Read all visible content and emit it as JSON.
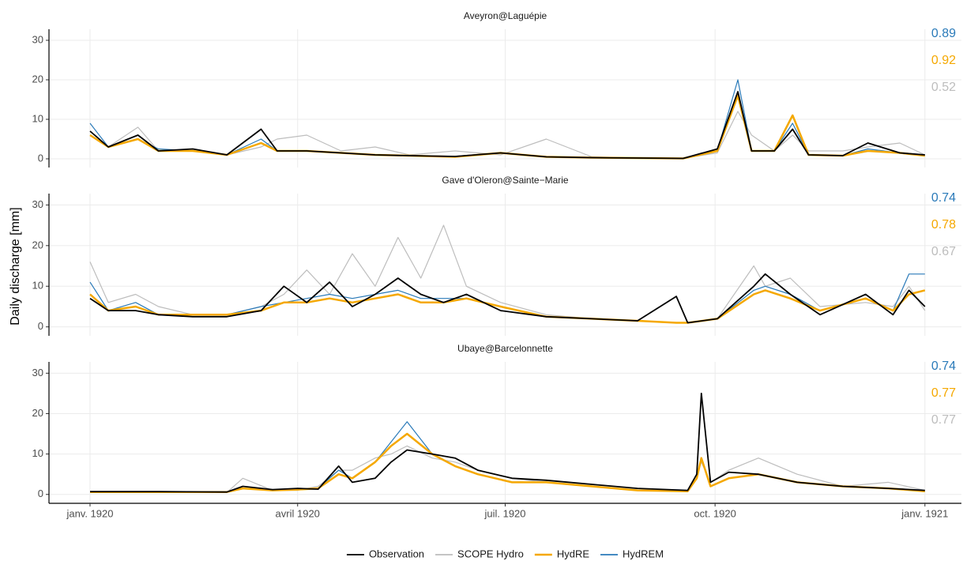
{
  "chart_data": {
    "type": "line",
    "ylabel": "Daily discharge [mm]",
    "ylim": [
      -2.2,
      32.8
    ],
    "yticks": [
      0,
      10,
      20,
      30
    ],
    "xlim": [
      -18,
      382
    ],
    "xticks": [
      {
        "value": 0,
        "label": "janv. 1920"
      },
      {
        "value": 91,
        "label": "avril 1920"
      },
      {
        "value": 182,
        "label": "juil. 1920"
      },
      {
        "value": 274,
        "label": "oct. 1920"
      },
      {
        "value": 366,
        "label": "janv. 1921"
      }
    ],
    "grid": true,
    "panels": [
      {
        "title": "Aveyron@Laguépie",
        "x": [
          0,
          8,
          21,
          30,
          45,
          60,
          75,
          82,
          95,
          110,
          125,
          140,
          160,
          180,
          200,
          220,
          240,
          260,
          275,
          284,
          290,
          300,
          308,
          315,
          330,
          341,
          355,
          366
        ]
      },
      {
        "title": "Gave d'Oleron@Sainte−Marie",
        "x": [
          0,
          8,
          20,
          30,
          45,
          60,
          75,
          85,
          95,
          105,
          115,
          125,
          135,
          145,
          155,
          165,
          180,
          200,
          220,
          240,
          257,
          262,
          275,
          291,
          296,
          307,
          320,
          340,
          352,
          359,
          366
        ]
      },
      {
        "title": "Ubaye@Barcelonnette",
        "x": [
          0,
          30,
          60,
          67,
          80,
          91,
          100,
          109,
          115,
          125,
          132,
          139,
          150,
          160,
          170,
          185,
          200,
          220,
          240,
          262,
          266,
          268,
          272,
          280,
          293,
          310,
          330,
          350,
          366
        ]
      }
    ],
    "series": [
      {
        "name": "Observation",
        "color": "#000000",
        "values": [
          [
            7,
            3,
            6,
            2,
            2.5,
            1,
            7.5,
            2,
            2,
            1.5,
            1,
            0.8,
            0.6,
            1.5,
            0.5,
            0.3,
            0.2,
            0.1,
            2.5,
            17,
            2,
            2,
            7.5,
            1,
            0.8,
            4,
            1.5,
            1
          ],
          [
            7,
            4,
            4,
            3,
            2.5,
            2.5,
            4,
            10,
            6,
            11,
            5,
            8,
            12,
            8,
            6,
            8,
            4,
            2.5,
            2,
            1.5,
            7.5,
            1,
            2,
            10,
            13,
            8,
            3,
            8,
            3,
            9,
            5
          ],
          [
            0.7,
            0.7,
            0.6,
            2,
            1.2,
            1.5,
            1.3,
            7,
            3,
            4,
            8,
            11,
            10,
            9,
            6,
            4,
            3.5,
            2.5,
            1.5,
            1,
            5,
            25,
            3,
            5.5,
            5,
            3,
            2,
            1.5,
            1
          ]
        ]
      },
      {
        "name": "SCOPE Hydro",
        "color": "#bdbdbd",
        "scores": [
          0.52,
          0.67,
          0.77
        ],
        "values": [
          [
            7,
            3,
            8,
            2,
            2,
            1,
            3,
            5,
            6,
            2,
            3,
            1,
            2,
            1,
            5,
            0.5,
            0.2,
            0.1,
            1.5,
            12,
            6,
            2,
            6,
            2,
            2,
            3,
            4,
            1
          ],
          [
            16,
            6,
            8,
            5,
            3,
            3,
            5,
            8,
            14,
            8,
            18,
            10,
            22,
            12,
            25,
            10,
            6,
            3,
            2,
            1.5,
            1,
            1,
            2,
            15,
            10,
            12,
            5,
            6,
            5,
            10,
            4
          ],
          [
            0.5,
            0.5,
            0.5,
            4,
            1,
            1,
            2,
            6,
            6,
            9,
            10,
            12,
            9,
            8,
            6,
            4,
            3,
            2,
            1,
            1,
            5,
            8,
            3,
            6,
            9,
            5,
            2,
            3,
            1
          ]
        ]
      },
      {
        "name": "HydRE",
        "color": "#f5a800",
        "scores": [
          0.92,
          0.78,
          0.77
        ],
        "values": [
          [
            6,
            3,
            5,
            2,
            2,
            1,
            4,
            2,
            2,
            1.5,
            1,
            0.8,
            0.5,
            1.5,
            0.5,
            0.3,
            0.2,
            0.1,
            2,
            16,
            2,
            2,
            11,
            1,
            0.8,
            2,
            1.5,
            0.8
          ],
          [
            8,
            4,
            5,
            3,
            3,
            3,
            4,
            6,
            6,
            7,
            6,
            7,
            8,
            6,
            6,
            7,
            5,
            2.5,
            2,
            1.5,
            1,
            1,
            2,
            8,
            9,
            7,
            4,
            7,
            4,
            8,
            9
          ],
          [
            0.6,
            0.6,
            0.6,
            1.5,
            1,
            1.2,
            1.5,
            5,
            4,
            8,
            12,
            15,
            10,
            7,
            5,
            3,
            3,
            2,
            1,
            0.8,
            4,
            9,
            2,
            4,
            5,
            3,
            2,
            1.5,
            0.8
          ]
        ]
      },
      {
        "name": "HydREM",
        "color": "#2a7ab9",
        "scores": [
          0.89,
          0.74,
          0.74
        ],
        "values": [
          [
            9,
            3,
            5,
            2.5,
            2,
            1,
            5,
            2,
            2,
            1.5,
            1,
            0.8,
            0.5,
            1.5,
            0.5,
            0.3,
            0.2,
            0.1,
            2,
            20,
            2,
            2,
            9,
            1,
            0.8,
            2.5,
            1.5,
            0.8
          ],
          [
            11,
            4,
            6,
            3,
            3,
            3,
            5,
            6,
            7,
            8,
            7,
            8,
            9,
            7,
            7,
            7,
            5,
            2.5,
            2,
            1.5,
            1,
            1,
            2,
            9,
            10,
            8,
            4,
            7,
            4,
            13,
            13
          ],
          [
            0.6,
            0.6,
            0.6,
            1.5,
            1,
            1.2,
            1.5,
            6,
            4,
            8,
            13,
            18,
            10,
            7,
            5,
            3,
            3,
            2,
            1,
            0.8,
            4,
            9,
            2,
            4,
            5,
            3,
            2,
            1.5,
            0.8
          ]
        ]
      }
    ]
  }
}
